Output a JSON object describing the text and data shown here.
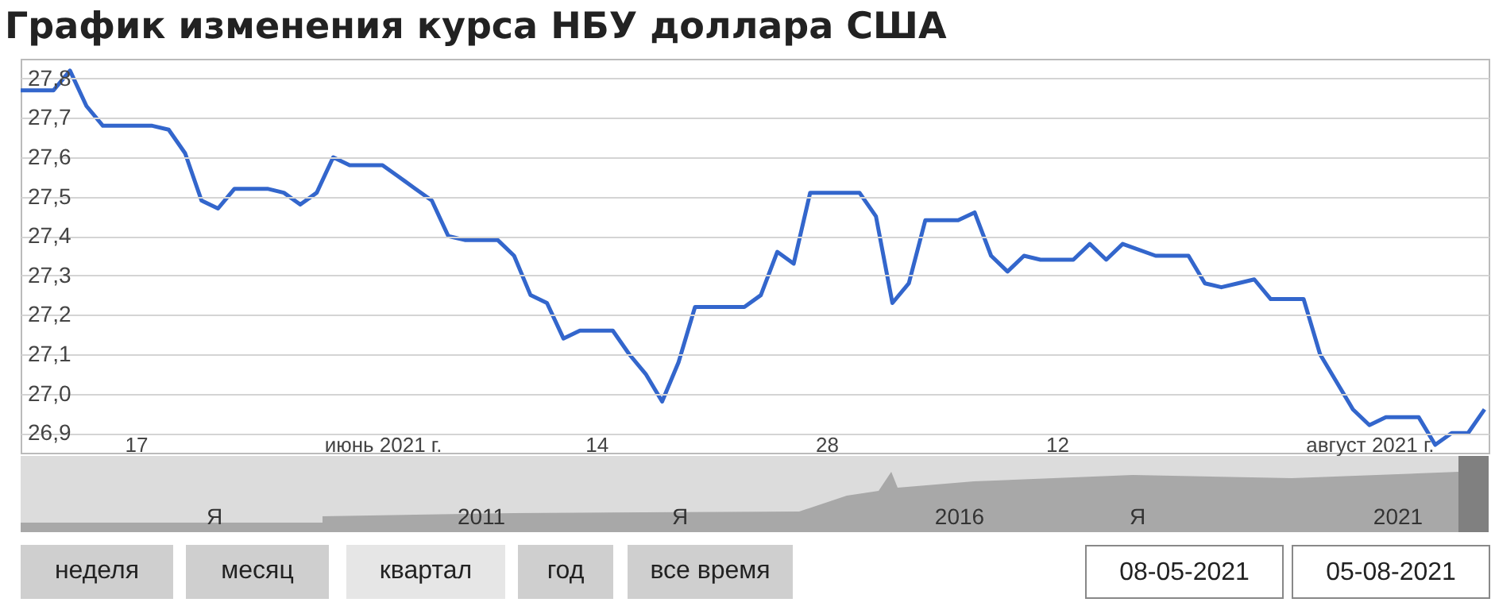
{
  "chart_data": {
    "type": "line",
    "title": "График изменения курса НБУ доллара США",
    "x": [
      "2021-05-10",
      "2021-05-12",
      "2021-05-13",
      "2021-05-14",
      "2021-05-15",
      "2021-05-16",
      "2021-05-18",
      "2021-05-19",
      "2021-05-20",
      "2021-05-21",
      "2021-05-22",
      "2021-05-23",
      "2021-05-25",
      "2021-05-26",
      "2021-05-27",
      "2021-05-28",
      "2021-05-29",
      "2021-05-30",
      "2021-06-01",
      "2021-06-02",
      "2021-06-03",
      "2021-06-04",
      "2021-06-05",
      "2021-06-06",
      "2021-06-08",
      "2021-06-09",
      "2021-06-10",
      "2021-06-11",
      "2021-06-12",
      "2021-06-13",
      "2021-06-15",
      "2021-06-16",
      "2021-06-17",
      "2021-06-18",
      "2021-06-19",
      "2021-06-20",
      "2021-06-23",
      "2021-06-24",
      "2021-06-25",
      "2021-06-26",
      "2021-06-27",
      "2021-06-30",
      "2021-07-01",
      "2021-07-02",
      "2021-07-03",
      "2021-07-04",
      "2021-07-06",
      "2021-07-07",
      "2021-07-08",
      "2021-07-09",
      "2021-07-10",
      "2021-07-11",
      "2021-07-13",
      "2021-07-14",
      "2021-07-15",
      "2021-07-16",
      "2021-07-18",
      "2021-07-20",
      "2021-07-21",
      "2021-07-22",
      "2021-07-23",
      "2021-07-24",
      "2021-07-25",
      "2021-07-27",
      "2021-07-28",
      "2021-07-29",
      "2021-07-30",
      "2021-07-31",
      "2021-08-01",
      "2021-08-03",
      "2021-08-04",
      "2021-08-05",
      "2021-08-06",
      "2021-08-07"
    ],
    "series": [
      {
        "color": "#3366cc",
        "values": [
          27.77,
          27.77,
          27.82,
          27.73,
          27.68,
          27.68,
          27.68,
          27.67,
          27.61,
          27.49,
          27.47,
          27.52,
          27.52,
          27.51,
          27.48,
          27.51,
          27.6,
          27.58,
          27.58,
          27.55,
          27.52,
          27.49,
          27.4,
          27.39,
          27.39,
          27.35,
          27.25,
          27.23,
          27.14,
          27.16,
          27.16,
          27.1,
          27.05,
          26.98,
          27.08,
          27.22,
          27.22,
          27.25,
          27.36,
          27.33,
          27.51,
          27.51,
          27.45,
          27.23,
          27.28,
          27.44,
          27.44,
          27.46,
          27.35,
          27.31,
          27.35,
          27.34,
          27.34,
          27.38,
          27.34,
          27.38,
          27.35,
          27.35,
          27.28,
          27.27,
          27.28,
          27.29,
          27.24,
          27.24,
          27.1,
          27.03,
          26.96,
          26.92,
          26.94,
          26.94,
          26.87,
          26.9,
          26.9,
          26.96
        ]
      }
    ],
    "xlim": [
      "2021-05-10",
      "2021-08-07T06:00"
    ],
    "xticks": [
      {
        "value": "2021-05-17",
        "label": "17"
      },
      {
        "value": "2021-06-01",
        "label": "июнь 2021 г."
      },
      {
        "value": "2021-06-14",
        "label": "14"
      },
      {
        "value": "2021-06-28",
        "label": "28"
      },
      {
        "value": "2021-07-12",
        "label": "12"
      },
      {
        "value": "2021-07-31",
        "label": "август 2021 г."
      }
    ],
    "ylim": [
      26.85,
      27.85
    ],
    "yticks": [
      {
        "value": 26.9,
        "label": "26,9"
      },
      {
        "value": 27.0,
        "label": "27,0"
      },
      {
        "value": 27.1,
        "label": "27,1"
      },
      {
        "value": 27.2,
        "label": "27,2"
      },
      {
        "value": 27.3,
        "label": "27,3"
      },
      {
        "value": 27.4,
        "label": "27,4"
      },
      {
        "value": 27.5,
        "label": "27,5"
      },
      {
        "value": 27.6,
        "label": "27,6"
      },
      {
        "value": 27.7,
        "label": "27,7"
      },
      {
        "value": 27.8,
        "label": "27,8"
      }
    ],
    "grid": "y",
    "annotations": [
      "Я",
      "2011",
      "Я",
      "2016",
      "Я",
      "2021",
      "неделя",
      "месяц",
      "квартал",
      "год",
      "все время",
      "08-05-2021",
      "05-08-2021"
    ]
  }
}
